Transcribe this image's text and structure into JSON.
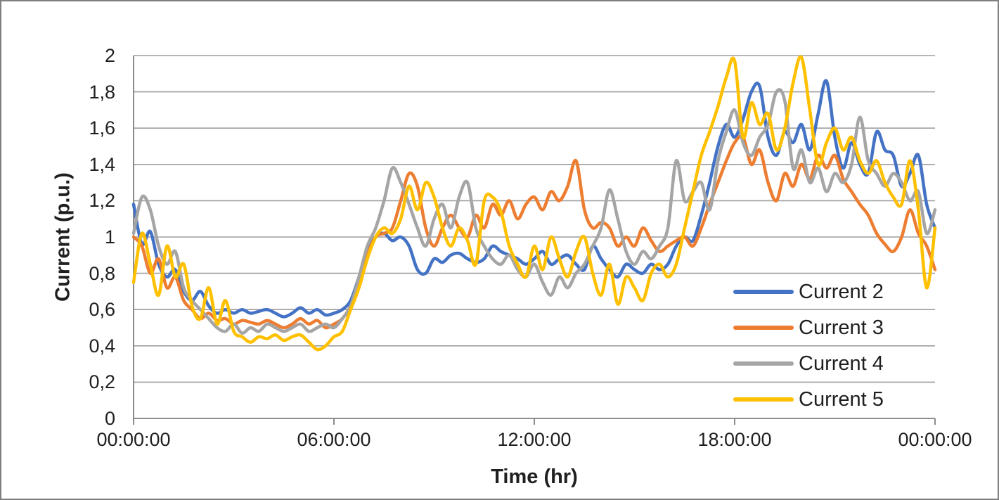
{
  "chart_data": {
    "type": "line",
    "title": "",
    "xlabel": "Time (hr)",
    "ylabel": "Current (p.u.)",
    "x_unit": "hours",
    "xlim_hours": [
      0,
      24
    ],
    "ylim": [
      0,
      2
    ],
    "y_major_step": 0.2,
    "grid": true,
    "legend_position": "inside-right",
    "x_tick_hours": [
      0,
      6,
      12,
      18,
      24
    ],
    "x_tick_labels": [
      "00:00:00",
      "06:00:00",
      "12:00:00",
      "18:00:00",
      "00:00:00"
    ],
    "y_tick_labels": [
      "0",
      "0,2",
      "0,4",
      "0,6",
      "0,8",
      "1",
      "1,2",
      "1,4",
      "1,6",
      "1,8",
      "2"
    ],
    "sample_interval_hours": 0.25,
    "series": [
      {
        "name": "Current 2",
        "color": "#4472C4",
        "values": [
          1.18,
          0.96,
          1.03,
          0.85,
          0.78,
          0.82,
          0.7,
          0.65,
          0.7,
          0.62,
          0.58,
          0.6,
          0.58,
          0.6,
          0.58,
          0.59,
          0.6,
          0.58,
          0.56,
          0.58,
          0.61,
          0.58,
          0.6,
          0.57,
          0.58,
          0.6,
          0.65,
          0.78,
          0.92,
          1.0,
          1.02,
          0.98,
          1.0,
          0.95,
          0.82,
          0.8,
          0.88,
          0.86,
          0.9,
          0.91,
          0.88,
          0.86,
          0.88,
          0.95,
          0.92,
          0.9,
          0.88,
          0.85,
          0.88,
          0.92,
          0.85,
          0.88,
          0.9,
          0.85,
          0.82,
          0.95,
          0.88,
          0.82,
          0.78,
          0.85,
          0.82,
          0.8,
          0.85,
          0.82,
          0.85,
          0.95,
          1.0,
          0.98,
          1.12,
          1.3,
          1.5,
          1.62,
          1.55,
          1.65,
          1.8,
          1.83,
          1.55,
          1.45,
          1.58,
          1.52,
          1.62,
          1.48,
          1.68,
          1.86,
          1.55,
          1.38,
          1.52,
          1.4,
          1.35,
          1.58,
          1.48,
          1.45,
          1.28,
          1.35,
          1.45,
          1.18,
          1.05
        ]
      },
      {
        "name": "Current 3",
        "color": "#ED7D31",
        "values": [
          1.0,
          0.95,
          0.8,
          0.88,
          0.72,
          0.78,
          0.65,
          0.6,
          0.55,
          0.58,
          0.54,
          0.55,
          0.52,
          0.54,
          0.53,
          0.52,
          0.54,
          0.52,
          0.5,
          0.52,
          0.55,
          0.52,
          0.54,
          0.5,
          0.52,
          0.55,
          0.62,
          0.75,
          0.9,
          1.0,
          1.02,
          1.05,
          1.2,
          1.35,
          1.28,
          1.05,
          0.95,
          1.05,
          1.12,
          1.05,
          1.0,
          1.12,
          1.05,
          1.18,
          1.12,
          1.2,
          1.1,
          1.18,
          1.22,
          1.15,
          1.25,
          1.2,
          1.28,
          1.42,
          1.15,
          1.05,
          1.08,
          1.05,
          0.95,
          1.0,
          0.95,
          1.05,
          0.98,
          0.92,
          0.95,
          0.98,
          1.0,
          0.95,
          1.05,
          1.18,
          1.3,
          1.42,
          1.52,
          1.55,
          1.4,
          1.48,
          1.3,
          1.2,
          1.35,
          1.28,
          1.4,
          1.32,
          1.45,
          1.38,
          1.45,
          1.32,
          1.25,
          1.18,
          1.12,
          1.02,
          0.96,
          0.92,
          1.0,
          1.15,
          1.02,
          0.95,
          0.82
        ]
      },
      {
        "name": "Current 4",
        "color": "#A5A5A5",
        "values": [
          1.02,
          1.22,
          1.15,
          0.95,
          0.85,
          0.92,
          0.72,
          0.65,
          0.6,
          0.55,
          0.5,
          0.48,
          0.52,
          0.47,
          0.5,
          0.48,
          0.52,
          0.5,
          0.48,
          0.5,
          0.52,
          0.48,
          0.5,
          0.52,
          0.5,
          0.55,
          0.62,
          0.78,
          0.95,
          1.05,
          1.2,
          1.38,
          1.3,
          1.18,
          1.05,
          0.95,
          1.1,
          1.18,
          1.05,
          1.22,
          1.3,
          1.05,
          0.95,
          0.88,
          0.85,
          0.9,
          0.82,
          0.78,
          0.85,
          0.75,
          0.68,
          0.78,
          0.72,
          0.8,
          0.85,
          0.95,
          1.05,
          1.26,
          1.1,
          0.92,
          0.85,
          0.92,
          0.88,
          0.95,
          1.05,
          1.42,
          1.2,
          1.25,
          1.3,
          1.15,
          1.42,
          1.58,
          1.7,
          1.52,
          1.45,
          1.55,
          1.62,
          1.8,
          1.75,
          1.38,
          1.48,
          1.3,
          1.38,
          1.25,
          1.35,
          1.3,
          1.4,
          1.66,
          1.42,
          1.35,
          1.28,
          1.35,
          1.3,
          1.2,
          1.25,
          1.02,
          1.15
        ]
      },
      {
        "name": "Current 5",
        "color": "#FFC000",
        "values": [
          0.75,
          1.02,
          0.85,
          0.68,
          0.95,
          0.78,
          0.85,
          0.62,
          0.55,
          0.72,
          0.52,
          0.65,
          0.48,
          0.45,
          0.42,
          0.45,
          0.44,
          0.46,
          0.43,
          0.45,
          0.46,
          0.42,
          0.38,
          0.4,
          0.45,
          0.48,
          0.6,
          0.72,
          0.88,
          1.0,
          1.05,
          1.02,
          1.1,
          1.28,
          1.15,
          1.3,
          1.22,
          1.05,
          0.95,
          1.05,
          0.98,
          0.85,
          1.2,
          1.22,
          1.14,
          0.95,
          0.85,
          0.78,
          0.95,
          0.82,
          1.0,
          0.88,
          0.78,
          0.92,
          1.0,
          0.8,
          0.68,
          0.85,
          0.63,
          0.78,
          0.72,
          0.65,
          0.8,
          0.85,
          0.78,
          0.85,
          1.05,
          1.25,
          1.45,
          1.58,
          1.72,
          1.88,
          1.97,
          1.55,
          1.74,
          1.62,
          1.68,
          1.48,
          1.6,
          1.85,
          1.99,
          1.7,
          1.4,
          1.52,
          1.6,
          1.48,
          1.55,
          1.42,
          1.35,
          1.42,
          1.3,
          1.22,
          1.18,
          1.42,
          1.15,
          0.72,
          1.05
        ]
      }
    ]
  },
  "colors": {
    "gridline": "#9E9E9E",
    "axis": "#808080",
    "text": "#1F1F1F",
    "frame_border": "#7F7F7F"
  }
}
